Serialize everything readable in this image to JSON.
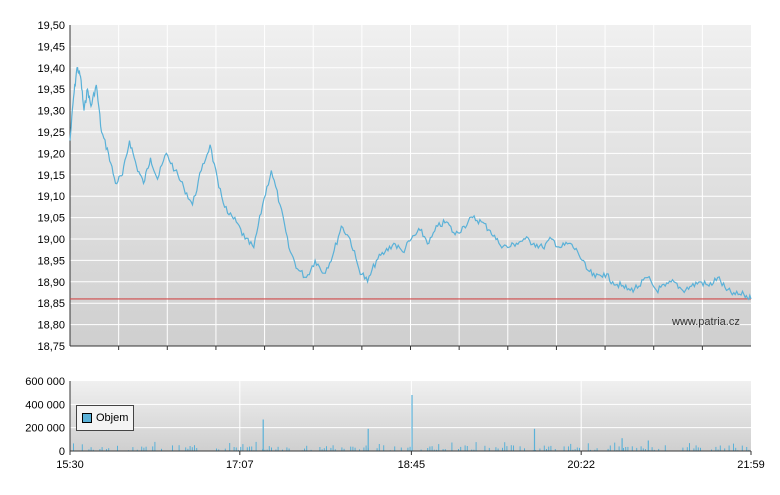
{
  "watermark": "www.patria.cz",
  "legend": {
    "label": "Objem",
    "color": "#5ab1d8"
  },
  "colors": {
    "price_line": "#5ab1d8",
    "volume_bars": "#5ab1d8",
    "reference_line": "#d04a4a",
    "plot_bg_top": "#f0f0f0",
    "plot_bg_bottom": "#cfcfcf",
    "grid": "#ffffff"
  },
  "chart_data": [
    {
      "type": "line",
      "title": "",
      "xlabel": "",
      "ylabel": "",
      "xlim": [
        "15:30",
        "21:59"
      ],
      "ylim": [
        18.75,
        19.5
      ],
      "y_ticks": [
        "19,50",
        "19,45",
        "19,40",
        "19,35",
        "19,30",
        "19,25",
        "19,20",
        "19,15",
        "19,10",
        "19,05",
        "19,00",
        "18,95",
        "18,90",
        "18,85",
        "18,80",
        "18,75"
      ],
      "reference_line": 18.86,
      "grid": true,
      "series": [
        {
          "x": [
            "15:30",
            "15:32",
            "15:34",
            "15:36",
            "15:38",
            "15:40",
            "15:42",
            "15:45",
            "15:48",
            "15:52",
            "15:56",
            "16:00",
            "16:04",
            "16:08",
            "16:12",
            "16:16",
            "16:20",
            "16:25",
            "16:30",
            "16:35",
            "16:40",
            "16:45",
            "16:50",
            "16:55",
            "17:00",
            "17:05",
            "17:10",
            "17:15",
            "17:20",
            "17:25",
            "17:30",
            "17:35",
            "17:40",
            "17:45",
            "17:50",
            "17:55",
            "18:00",
            "18:05",
            "18:10",
            "18:15",
            "18:20",
            "18:25",
            "18:30",
            "18:35",
            "18:40",
            "18:45",
            "18:50",
            "18:55",
            "19:00",
            "19:05",
            "19:10",
            "19:15",
            "19:20",
            "19:25",
            "19:30",
            "19:35",
            "19:40",
            "19:45",
            "19:50",
            "19:55",
            "20:00",
            "20:05",
            "20:10",
            "20:15",
            "20:20",
            "20:25",
            "20:30",
            "20:35",
            "20:40",
            "20:45",
            "20:50",
            "20:55",
            "21:00",
            "21:05",
            "21:10",
            "21:15",
            "21:20",
            "21:25",
            "21:30",
            "21:35",
            "21:40",
            "21:45",
            "21:50",
            "21:55",
            "21:59"
          ],
          "values": [
            19.23,
            19.33,
            19.4,
            19.38,
            19.3,
            19.35,
            19.31,
            19.36,
            19.25,
            19.2,
            19.13,
            19.15,
            19.23,
            19.17,
            19.13,
            19.19,
            19.14,
            19.2,
            19.16,
            19.12,
            19.08,
            19.16,
            19.22,
            19.12,
            19.06,
            19.04,
            19.0,
            18.98,
            19.08,
            19.16,
            19.08,
            18.98,
            18.93,
            18.91,
            18.95,
            18.92,
            18.96,
            19.03,
            19.0,
            18.93,
            18.9,
            18.95,
            18.97,
            18.99,
            18.97,
            19.0,
            19.02,
            18.99,
            19.03,
            19.04,
            19.01,
            19.03,
            19.05,
            19.04,
            19.02,
            18.99,
            18.98,
            18.99,
            19.0,
            18.99,
            18.98,
            19.0,
            18.98,
            18.99,
            18.97,
            18.93,
            18.91,
            18.92,
            18.9,
            18.89,
            18.88,
            18.89,
            18.91,
            18.88,
            18.89,
            18.9,
            18.88,
            18.89,
            18.9,
            18.89,
            18.91,
            18.88,
            18.87,
            18.87,
            18.86
          ]
        }
      ]
    },
    {
      "type": "bar",
      "title": "",
      "xlabel": "",
      "ylabel": "",
      "name": "Objem",
      "ylim": [
        0,
        600000
      ],
      "y_ticks": [
        "600 000",
        "400 000",
        "200 000",
        "0"
      ],
      "x_ticks": [
        "15:30",
        "17:07",
        "18:45",
        "20:22",
        "21:59"
      ],
      "grid": true,
      "spikes": [
        {
          "x": "17:20",
          "value": 270000
        },
        {
          "x": "18:20",
          "value": 190000
        },
        {
          "x": "18:45",
          "value": 480000
        },
        {
          "x": "19:55",
          "value": 190000
        },
        {
          "x": "20:45",
          "value": 110000
        },
        {
          "x": "21:00",
          "value": 90000
        }
      ],
      "baseline_range": [
        20000,
        80000
      ]
    }
  ]
}
